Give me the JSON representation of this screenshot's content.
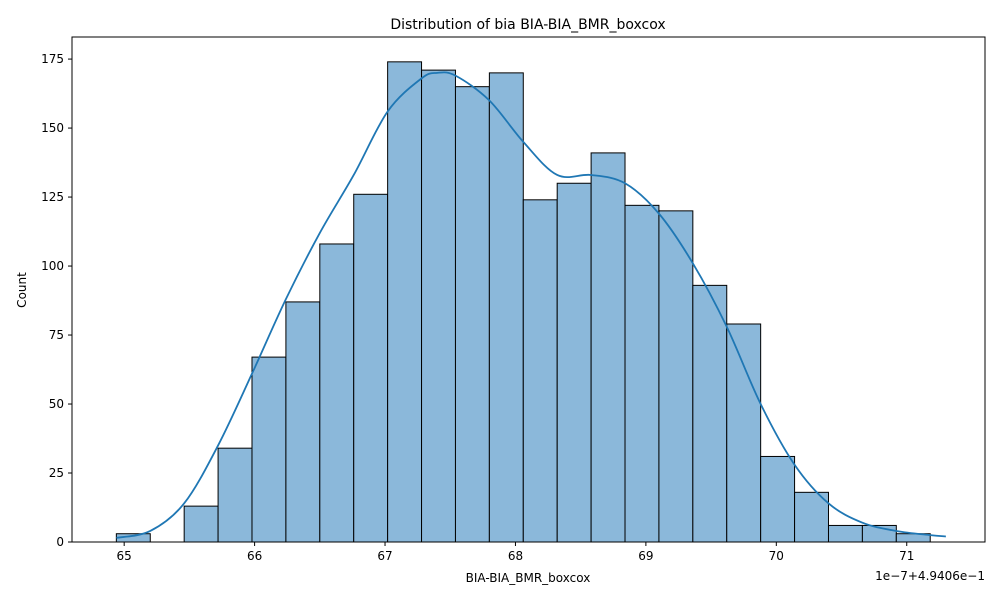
{
  "chart_data": {
    "type": "bar",
    "title": "Distribution of bia BIA-BIA_BMR_boxcox",
    "xlabel": "BIA-BIA_BMR_boxcox",
    "ylabel": "Count",
    "offset_text": "1e−7+4.9406e−1",
    "xlim": [
      64.6,
      71.6
    ],
    "ylim": [
      0,
      183
    ],
    "x_ticks": [
      65,
      66,
      67,
      68,
      69,
      70,
      71
    ],
    "x_tick_labels": [
      "65",
      "66",
      "67",
      "68",
      "69",
      "70",
      "71"
    ],
    "y_ticks": [
      0,
      25,
      50,
      75,
      100,
      125,
      150,
      175
    ],
    "y_tick_labels": [
      "0",
      "25",
      "50",
      "75",
      "100",
      "125",
      "150",
      "175"
    ],
    "bin_edges": [
      64.94,
      65.2,
      65.46,
      65.72,
      65.98,
      66.24,
      66.5,
      66.76,
      67.02,
      67.28,
      67.54,
      67.8,
      68.06,
      68.32,
      68.58,
      68.84,
      69.1,
      69.36,
      69.62,
      69.88,
      70.14,
      70.4,
      70.66,
      70.92,
      71.18
    ],
    "counts": [
      3,
      0,
      13,
      34,
      67,
      87,
      108,
      126,
      174,
      171,
      165,
      170,
      124,
      130,
      141,
      122,
      120,
      93,
      79,
      31,
      18,
      6,
      6,
      3
    ],
    "kde": {
      "x": [
        64.94,
        65.2,
        65.46,
        65.72,
        65.98,
        66.24,
        66.5,
        66.76,
        67.02,
        67.28,
        67.4,
        67.54,
        67.8,
        68.06,
        68.32,
        68.58,
        68.84,
        69.1,
        69.36,
        69.62,
        69.88,
        70.14,
        70.4,
        70.66,
        70.92,
        71.18,
        71.3
      ],
      "y": [
        1.5,
        4,
        14,
        35,
        61,
        88,
        112,
        133,
        156,
        168,
        170,
        169,
        160,
        145,
        133,
        133,
        130,
        119,
        101,
        78,
        50,
        28,
        14,
        7,
        4,
        2.5,
        2
      ]
    },
    "bar_color": "#8bb8da",
    "bar_edge_color": "#000000",
    "line_color": "#1f77b4",
    "grid": false,
    "legend": "none"
  }
}
